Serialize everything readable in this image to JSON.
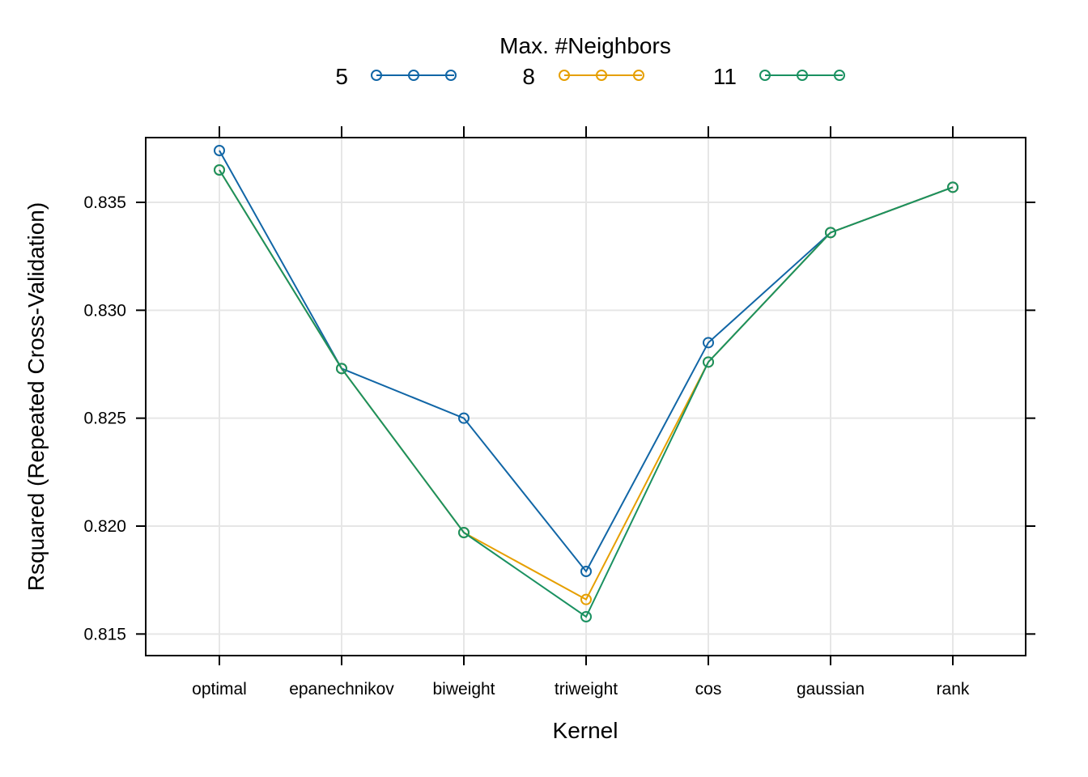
{
  "chart_data": {
    "type": "line",
    "xlabel": "Kernel",
    "ylabel": "Rsquared (Repeated Cross-Validation)",
    "categories": [
      "optimal",
      "epanechnikov",
      "biweight",
      "triweight",
      "cos",
      "gaussian",
      "rank"
    ],
    "ylim": [
      0.814,
      0.838
    ],
    "yticks": [
      "0.815",
      "0.820",
      "0.825",
      "0.830",
      "0.835"
    ],
    "grid": true,
    "legend": {
      "title": "Max. #Neighbors",
      "placement": "top"
    },
    "series": [
      {
        "name": "5",
        "color": "#1166a6",
        "values": [
          0.8374,
          0.8273,
          0.825,
          0.8179,
          0.8285,
          0.8336,
          0.8357
        ]
      },
      {
        "name": "8",
        "color": "#e69f00",
        "values": [
          0.8365,
          0.8273,
          0.8197,
          0.8166,
          0.8276,
          0.8336,
          0.8357
        ]
      },
      {
        "name": "11",
        "color": "#1a9161",
        "values": [
          0.8365,
          0.8273,
          0.8197,
          0.8158,
          0.8276,
          0.8336,
          0.8357
        ]
      }
    ]
  }
}
